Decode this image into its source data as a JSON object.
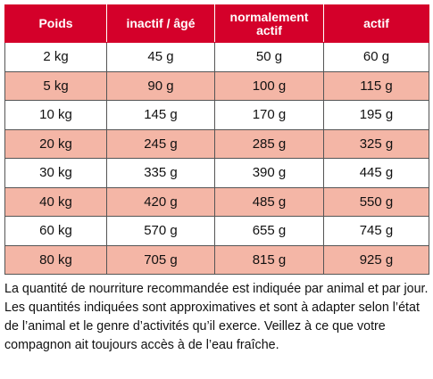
{
  "table": {
    "header": [
      "Poids",
      "inactif / âgé",
      "normalement actif",
      "actif"
    ],
    "rows": [
      [
        "2 kg",
        "45 g",
        "50 g",
        "60 g"
      ],
      [
        "5 kg",
        "90 g",
        "100 g",
        "115 g"
      ],
      [
        "10 kg",
        "145 g",
        "170 g",
        "195 g"
      ],
      [
        "20 kg",
        "245 g",
        "285 g",
        "325 g"
      ],
      [
        "30 kg",
        "335 g",
        "390 g",
        "445 g"
      ],
      [
        "40 kg",
        "420 g",
        "485 g",
        "550 g"
      ],
      [
        "60 kg",
        "570 g",
        "655 g",
        "745 g"
      ],
      [
        "80 kg",
        "705 g",
        "815 g",
        "925 g"
      ]
    ]
  },
  "note": "La quantité de nourriture recommandée est indiquée par animal et par jour. Les quantités indiquées sont approximatives et sont à adapter selon l’état de l’animal et le genre d’activités qu’il exerce. Veillez à ce que votre compagnon ait toujours accès à de l’eau fraîche."
}
